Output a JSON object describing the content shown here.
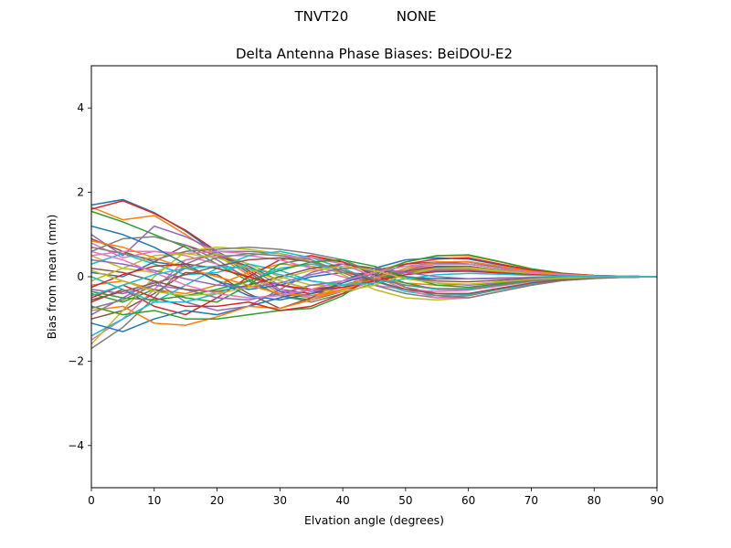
{
  "figure": {
    "suptitle": "TNVT20           NONE"
  },
  "chart_data": {
    "type": "line",
    "title": "Delta Antenna Phase Biases: BeiDOU-E2",
    "xlabel": "Elvation angle (degrees)",
    "ylabel": "Bias from mean (mm)",
    "xlim": [
      0,
      90
    ],
    "ylim": [
      -5,
      5
    ],
    "xticks": [
      0,
      10,
      20,
      30,
      40,
      50,
      60,
      70,
      80,
      90
    ],
    "yticks": [
      -4,
      -2,
      0,
      2,
      4
    ],
    "ytick_labels": [
      "−4",
      "−2",
      "0",
      "2",
      "4"
    ],
    "grid": false,
    "legend": "none",
    "palette": [
      "#1f77b4",
      "#ff7f0e",
      "#2ca02c",
      "#d62728",
      "#9467bd",
      "#8c564b",
      "#e377c2",
      "#7f7f7f",
      "#bcbd22",
      "#17becf"
    ],
    "x": [
      0,
      5,
      10,
      15,
      20,
      25,
      30,
      35,
      40,
      45,
      50,
      55,
      60,
      65,
      70,
      75,
      80,
      85,
      90
    ],
    "series": [
      {
        "values": [
          1.7,
          1.83,
          1.52,
          1.08,
          0.55,
          0.1,
          -0.35,
          -0.45,
          -0.3,
          -0.1,
          0.1,
          0.22,
          0.22,
          0.15,
          0.08,
          0.04,
          0.02,
          0.01,
          0
        ]
      },
      {
        "values": [
          1.65,
          1.35,
          1.45,
          1.0,
          0.5,
          0.05,
          -0.4,
          -0.5,
          -0.3,
          -0.1,
          0.1,
          0.2,
          0.2,
          0.14,
          0.08,
          0.04,
          0.02,
          0.01,
          0
        ]
      },
      {
        "values": [
          1.55,
          1.3,
          1.0,
          0.7,
          0.3,
          -0.1,
          -0.45,
          -0.55,
          -0.35,
          -0.1,
          0.12,
          0.25,
          0.24,
          0.16,
          0.09,
          0.04,
          0.02,
          0.01,
          0
        ]
      },
      {
        "values": [
          1.6,
          1.8,
          1.5,
          1.1,
          0.6,
          0.15,
          -0.3,
          -0.4,
          -0.25,
          -0.05,
          0.12,
          0.2,
          0.2,
          0.13,
          0.07,
          0.03,
          0.02,
          0.01,
          0
        ]
      },
      {
        "values": [
          1.0,
          0.5,
          1.2,
          0.95,
          0.6,
          0.2,
          -0.2,
          -0.35,
          -0.25,
          -0.05,
          0.1,
          0.18,
          0.18,
          0.12,
          0.07,
          0.03,
          0.02,
          0.01,
          0
        ]
      },
      {
        "values": [
          0.9,
          0.6,
          0.35,
          0.75,
          0.5,
          0.25,
          -0.1,
          -0.3,
          -0.2,
          0.0,
          0.15,
          0.25,
          0.25,
          0.15,
          0.08,
          0.04,
          0.02,
          0.01,
          0
        ]
      },
      {
        "values": [
          0.8,
          0.45,
          0.6,
          0.5,
          0.3,
          0.0,
          -0.3,
          -0.5,
          -0.35,
          -0.1,
          0.15,
          0.3,
          0.3,
          0.2,
          0.1,
          0.05,
          0.02,
          0.01,
          0
        ]
      },
      {
        "values": [
          0.6,
          0.9,
          0.95,
          0.75,
          0.4,
          -0.05,
          -0.45,
          -0.6,
          -0.4,
          -0.15,
          0.15,
          0.35,
          0.35,
          0.22,
          0.12,
          0.05,
          0.02,
          0.01,
          0
        ]
      },
      {
        "values": [
          0.5,
          0.2,
          0.1,
          0.4,
          0.55,
          0.3,
          0.0,
          -0.2,
          -0.2,
          -0.05,
          0.1,
          0.2,
          0.2,
          0.12,
          0.06,
          0.03,
          0.02,
          0.01,
          0
        ]
      },
      {
        "values": [
          0.3,
          0.55,
          0.3,
          0.05,
          0.1,
          0.3,
          0.15,
          -0.1,
          -0.2,
          -0.1,
          0.05,
          0.15,
          0.15,
          0.1,
          0.05,
          0.02,
          0.01,
          0.0,
          0
        ]
      },
      {
        "values": [
          0.1,
          0.0,
          0.35,
          0.25,
          -0.1,
          -0.3,
          -0.2,
          0.0,
          0.1,
          0.05,
          0.0,
          -0.05,
          -0.05,
          -0.03,
          -0.02,
          -0.01,
          0.0,
          0.0,
          0
        ]
      },
      {
        "values": [
          -0.2,
          -0.1,
          -0.3,
          -0.4,
          -0.2,
          0.1,
          0.3,
          0.25,
          0.1,
          -0.05,
          -0.15,
          -0.2,
          -0.18,
          -0.12,
          -0.07,
          -0.03,
          -0.02,
          -0.01,
          0
        ]
      },
      {
        "values": [
          -0.4,
          -0.6,
          -0.3,
          -0.5,
          -0.6,
          -0.2,
          0.3,
          0.45,
          0.35,
          0.1,
          -0.15,
          -0.3,
          -0.3,
          -0.2,
          -0.1,
          -0.05,
          -0.02,
          -0.01,
          0
        ]
      },
      {
        "values": [
          -0.6,
          -0.3,
          -0.7,
          -0.9,
          -0.5,
          0.0,
          0.4,
          0.5,
          0.35,
          0.05,
          -0.25,
          -0.4,
          -0.4,
          -0.27,
          -0.15,
          -0.07,
          -0.03,
          -0.01,
          0
        ]
      },
      {
        "values": [
          -0.9,
          -0.5,
          -0.1,
          -0.6,
          -0.8,
          -0.7,
          -0.3,
          0.1,
          0.3,
          0.2,
          0.0,
          -0.15,
          -0.2,
          -0.15,
          -0.08,
          -0.04,
          -0.02,
          -0.01,
          0
        ]
      },
      {
        "values": [
          -1.0,
          -0.8,
          -0.4,
          0.1,
          0.05,
          -0.4,
          -0.75,
          -0.5,
          -0.1,
          0.15,
          0.3,
          0.35,
          0.3,
          0.2,
          0.1,
          0.05,
          0.02,
          0.01,
          0
        ]
      },
      {
        "values": [
          -1.5,
          -1.0,
          -0.3,
          0.4,
          0.5,
          0.5,
          0.4,
          0.2,
          0.0,
          -0.2,
          -0.3,
          -0.35,
          -0.32,
          -0.22,
          -0.12,
          -0.06,
          -0.03,
          -0.01,
          0
        ]
      },
      {
        "values": [
          -1.7,
          -1.2,
          -0.5,
          0.3,
          0.6,
          0.6,
          0.55,
          0.4,
          0.1,
          -0.2,
          -0.4,
          -0.5,
          -0.45,
          -0.3,
          -0.17,
          -0.08,
          -0.03,
          -0.01,
          0
        ]
      },
      {
        "values": [
          -1.6,
          -0.8,
          0.0,
          0.6,
          0.7,
          0.65,
          0.55,
          0.35,
          0.05,
          -0.3,
          -0.5,
          -0.55,
          -0.5,
          -0.35,
          -0.2,
          -0.09,
          -0.04,
          -0.01,
          0
        ]
      },
      {
        "values": [
          -1.4,
          -1.0,
          -0.6,
          -0.2,
          0.2,
          0.5,
          0.6,
          0.45,
          0.2,
          -0.1,
          -0.35,
          -0.45,
          -0.42,
          -0.3,
          -0.17,
          -0.08,
          -0.03,
          -0.01,
          0
        ]
      },
      {
        "values": [
          -1.1,
          -1.3,
          -1.0,
          -0.8,
          -0.9,
          -0.7,
          -0.5,
          -0.3,
          -0.1,
          0.2,
          0.4,
          0.45,
          0.42,
          0.28,
          0.15,
          0.07,
          0.03,
          0.01,
          0
        ]
      },
      {
        "values": [
          -0.8,
          -0.7,
          -1.1,
          -1.15,
          -0.95,
          -0.7,
          -0.75,
          -0.55,
          -0.3,
          0.1,
          0.35,
          0.5,
          0.5,
          0.35,
          0.18,
          0.08,
          0.03,
          0.01,
          0
        ]
      },
      {
        "values": [
          -0.7,
          -0.9,
          -0.8,
          -1.0,
          -1.0,
          -0.9,
          -0.8,
          -0.75,
          -0.45,
          0.05,
          0.35,
          0.5,
          0.52,
          0.36,
          0.19,
          0.08,
          0.03,
          0.01,
          0
        ]
      },
      {
        "values": [
          -0.5,
          -0.2,
          -0.5,
          -0.7,
          -0.7,
          -0.6,
          -0.8,
          -0.7,
          -0.4,
          0.0,
          0.3,
          0.42,
          0.45,
          0.3,
          0.16,
          0.07,
          0.03,
          0.01,
          0
        ]
      },
      {
        "values": [
          -0.3,
          -0.4,
          -0.2,
          -0.3,
          -0.5,
          -0.55,
          -0.4,
          -0.2,
          -0.1,
          0.0,
          0.1,
          0.15,
          0.15,
          0.1,
          0.05,
          0.02,
          0.01,
          0.0,
          0
        ]
      },
      {
        "values": [
          0.2,
          0.1,
          -0.1,
          -0.3,
          -0.35,
          -0.2,
          0.0,
          0.2,
          0.3,
          0.2,
          0.0,
          -0.1,
          -0.12,
          -0.08,
          -0.04,
          -0.02,
          -0.01,
          0.0,
          0
        ]
      },
      {
        "values": [
          0.5,
          0.6,
          0.6,
          0.55,
          0.6,
          0.55,
          0.5,
          0.45,
          0.3,
          0.0,
          -0.3,
          -0.5,
          -0.5,
          -0.35,
          -0.2,
          -0.09,
          -0.04,
          -0.01,
          0
        ]
      },
      {
        "values": [
          0.7,
          0.55,
          0.4,
          0.6,
          0.65,
          0.7,
          0.65,
          0.55,
          0.4,
          0.1,
          -0.25,
          -0.45,
          -0.5,
          -0.35,
          -0.2,
          -0.09,
          -0.04,
          -0.01,
          0
        ]
      },
      {
        "values": [
          -0.1,
          0.2,
          0.5,
          0.55,
          0.45,
          0.2,
          -0.1,
          -0.3,
          -0.35,
          -0.2,
          0.05,
          0.2,
          0.22,
          0.15,
          0.08,
          0.04,
          0.02,
          0.01,
          0
        ]
      },
      {
        "values": [
          0.0,
          -0.3,
          -0.6,
          -0.6,
          -0.4,
          -0.1,
          0.2,
          0.3,
          0.15,
          -0.05,
          -0.2,
          -0.3,
          -0.3,
          -0.2,
          -0.1,
          -0.05,
          -0.02,
          -0.01,
          0
        ]
      },
      {
        "values": [
          1.2,
          1.0,
          0.7,
          0.3,
          -0.1,
          -0.45,
          -0.55,
          -0.4,
          -0.15,
          0.1,
          0.25,
          0.32,
          0.3,
          0.2,
          0.1,
          0.05,
          0.02,
          0.01,
          0
        ]
      },
      {
        "values": [
          0.85,
          0.7,
          0.45,
          0.2,
          0.0,
          -0.2,
          -0.4,
          -0.45,
          -0.3,
          -0.05,
          0.2,
          0.35,
          0.36,
          0.25,
          0.13,
          0.06,
          0.02,
          0.01,
          0
        ]
      },
      {
        "values": [
          -0.35,
          -0.5,
          -0.55,
          -0.45,
          -0.3,
          -0.1,
          0.15,
          0.35,
          0.4,
          0.25,
          0.0,
          -0.2,
          -0.25,
          -0.17,
          -0.09,
          -0.04,
          -0.02,
          -0.01,
          0
        ]
      },
      {
        "values": [
          -0.25,
          0.05,
          0.25,
          0.3,
          0.2,
          0.0,
          -0.2,
          -0.3,
          -0.25,
          -0.1,
          0.05,
          0.12,
          0.13,
          0.09,
          0.05,
          0.02,
          0.01,
          0.0,
          0
        ]
      },
      {
        "values": [
          0.4,
          0.3,
          0.15,
          -0.05,
          -0.2,
          -0.25,
          -0.15,
          0.05,
          0.2,
          0.2,
          0.1,
          0.0,
          -0.05,
          -0.04,
          -0.02,
          -0.01,
          0.0,
          0.0,
          0
        ]
      },
      {
        "values": [
          -0.55,
          -0.35,
          -0.15,
          0.05,
          0.25,
          0.4,
          0.45,
          0.35,
          0.15,
          -0.1,
          -0.3,
          -0.4,
          -0.4,
          -0.28,
          -0.15,
          -0.07,
          -0.03,
          -0.01,
          0
        ]
      },
      {
        "values": [
          0.6,
          0.4,
          0.1,
          -0.2,
          -0.4,
          -0.5,
          -0.45,
          -0.3,
          -0.1,
          0.1,
          0.25,
          0.3,
          0.3,
          0.2,
          0.1,
          0.05,
          0.02,
          0.01,
          0
        ]
      },
      {
        "values": [
          -0.75,
          -0.55,
          -0.2,
          0.2,
          0.45,
          0.55,
          0.5,
          0.35,
          0.15,
          -0.05,
          -0.2,
          -0.28,
          -0.28,
          -0.2,
          -0.1,
          -0.05,
          -0.02,
          -0.01,
          0
        ]
      },
      {
        "values": [
          0.15,
          -0.1,
          -0.35,
          -0.45,
          -0.4,
          -0.25,
          -0.05,
          0.15,
          0.25,
          0.15,
          -0.05,
          -0.15,
          -0.18,
          -0.12,
          -0.06,
          -0.03,
          -0.01,
          0.0,
          0
        ]
      },
      {
        "values": [
          -0.45,
          -0.2,
          0.05,
          0.2,
          0.25,
          0.2,
          0.05,
          -0.1,
          -0.2,
          -0.15,
          -0.05,
          0.05,
          0.08,
          0.06,
          0.03,
          0.01,
          0.0,
          0.0,
          0
        ]
      }
    ]
  }
}
